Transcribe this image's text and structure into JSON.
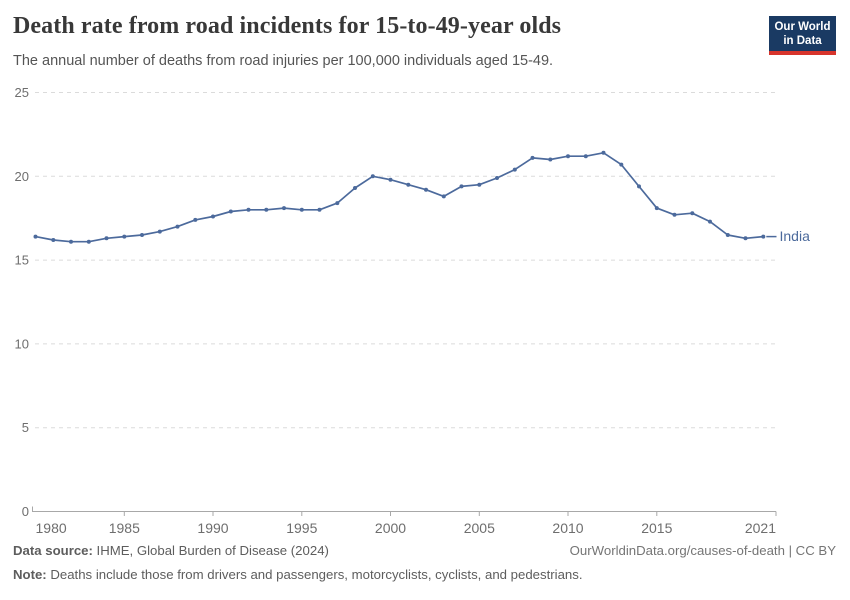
{
  "header": {
    "title": "Death rate from road incidents for 15-to-49-year olds",
    "subtitle": "The annual number of deaths from road injuries per 100,000 individuals aged 15-49.",
    "logo": {
      "line1": "Our World",
      "line2": "in Data"
    }
  },
  "chart_data": {
    "type": "line",
    "title": "Death rate from road incidents for 15-to-49-year olds",
    "subtitle": "The annual number of deaths from road injuries per 100,000 individuals aged 15-49.",
    "xlabel": "",
    "ylabel": "",
    "xlim": [
      1980,
      2021
    ],
    "ylim": [
      0,
      25
    ],
    "x_ticks": [
      1980,
      1985,
      1990,
      1995,
      2000,
      2005,
      2010,
      2015,
      2021
    ],
    "y_ticks": [
      0,
      5,
      10,
      15,
      20,
      25
    ],
    "grid": "horizontal-dashed",
    "legend_position": "end-of-line-label",
    "series": [
      {
        "name": "India",
        "color": "#4c6a9c",
        "years": [
          1980,
          1981,
          1982,
          1983,
          1984,
          1985,
          1986,
          1987,
          1988,
          1989,
          1990,
          1991,
          1992,
          1993,
          1994,
          1995,
          1996,
          1997,
          1998,
          1999,
          2000,
          2001,
          2002,
          2003,
          2004,
          2005,
          2006,
          2007,
          2008,
          2009,
          2010,
          2011,
          2012,
          2013,
          2014,
          2015,
          2016,
          2017,
          2018,
          2019,
          2020,
          2021
        ],
        "values": [
          16.4,
          16.2,
          16.1,
          16.1,
          16.3,
          16.4,
          16.5,
          16.7,
          17.0,
          17.4,
          17.6,
          17.9,
          18.0,
          18.0,
          18.1,
          18.0,
          18.0,
          18.4,
          19.3,
          20.0,
          19.8,
          19.5,
          19.2,
          18.8,
          19.4,
          19.5,
          19.9,
          20.4,
          21.1,
          21.0,
          21.2,
          21.2,
          21.4,
          20.7,
          19.4,
          18.1,
          17.7,
          17.8,
          17.3,
          16.5,
          16.3,
          16.4
        ]
      }
    ]
  },
  "footer": {
    "datasource_label": "Data source:",
    "datasource_text": " IHME, Global Burden of Disease (2024)",
    "note_label": "Note:",
    "note_text": " Deaths include those from drivers and passengers, motorcyclists, cyclists, and pedestrians.",
    "link": "OurWorldinData.org/causes-of-death | CC BY"
  },
  "colors": {
    "line": "#4c6a9c",
    "logo_navy": "#1a3a63",
    "logo_red": "#d7342c",
    "gridline": "#dbdbdb",
    "axis": "#a8a8a8",
    "tick_label": "#6e6e6e",
    "title_text": "#383838",
    "subtitle_text": "#555555",
    "footer_text": "#5d5d5d"
  }
}
